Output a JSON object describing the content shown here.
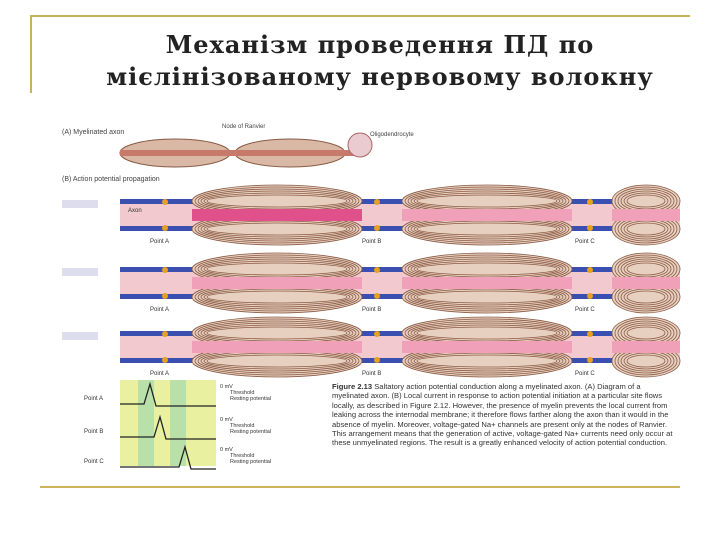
{
  "header": {
    "title_line1": "Механізм проведення ПД по",
    "title_line2": "мієлінізованому нервовому волокну"
  },
  "figure": {
    "panel_a": "(A) Myelinated axon",
    "node_label": "Node of Ranvier",
    "oligo_label": "Oligodendrocyte",
    "panel_b": "(B) Action potential propagation",
    "axon_label": "Axon",
    "points": [
      "Point A",
      "Point B",
      "Point C"
    ],
    "trace_labels": {
      "zero": "0 mV",
      "threshold": "Threshold",
      "resting": "Resting potential"
    },
    "caption_title": "Figure 2.13",
    "caption": "Saltatory action potential conduction along a myelinated axon. (A) Diagram of a myelinated axon. (B) Local current in response to action potential initiation at a particular site flows locally, as described in Figure 2.12. However, the presence of myelin prevents the local current from leaking across the internodal membrane; it therefore flows farther along the axon than it would in the absence of myelin. Moreover, voltage-gated Na+ channels are present only at the nodes of Ranvier. This arrangement means that the generation of active, voltage-gated Na+ currents need only occur at these unmyelinated regions. The result is a greatly enhanced velocity of action potential conduction."
  }
}
